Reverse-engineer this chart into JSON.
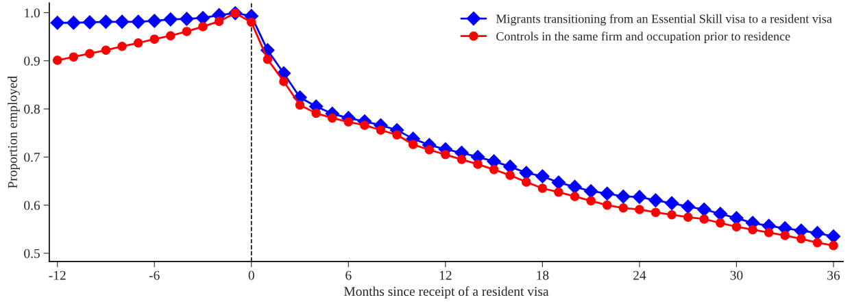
{
  "chart_data": {
    "type": "line",
    "xlabel": "Months since receipt of a resident visa",
    "ylabel": "Proportion employed",
    "x": [
      -12,
      -11,
      -10,
      -9,
      -8,
      -7,
      -6,
      -5,
      -4,
      -3,
      -2,
      -1,
      0,
      1,
      2,
      3,
      4,
      5,
      6,
      7,
      8,
      9,
      10,
      11,
      12,
      13,
      14,
      15,
      16,
      17,
      18,
      19,
      20,
      21,
      22,
      23,
      24,
      25,
      26,
      27,
      28,
      29,
      30,
      31,
      32,
      33,
      34,
      35,
      36
    ],
    "series": [
      {
        "name": "Migrants transitioning from an Essential Skill visa to a resident visa",
        "color": "#0000ff",
        "marker": "diamond",
        "values": [
          0.979,
          0.979,
          0.98,
          0.981,
          0.981,
          0.981,
          0.983,
          0.986,
          0.987,
          0.989,
          0.995,
          0.999,
          0.993,
          0.922,
          0.874,
          0.824,
          0.805,
          0.79,
          0.781,
          0.774,
          0.766,
          0.756,
          0.738,
          0.725,
          0.716,
          0.709,
          0.7,
          0.691,
          0.68,
          0.667,
          0.66,
          0.647,
          0.638,
          0.629,
          0.624,
          0.618,
          0.617,
          0.61,
          0.604,
          0.597,
          0.591,
          0.582,
          0.573,
          0.563,
          0.557,
          0.552,
          0.547,
          0.542,
          0.535
        ]
      },
      {
        "name": "Controls in the same firm and occupation prior to residence",
        "color": "#ff0000",
        "marker": "circle",
        "values": [
          0.901,
          0.908,
          0.915,
          0.922,
          0.93,
          0.937,
          0.945,
          0.952,
          0.961,
          0.971,
          0.982,
          0.999,
          0.98,
          0.903,
          0.857,
          0.808,
          0.791,
          0.781,
          0.773,
          0.766,
          0.756,
          0.746,
          0.726,
          0.715,
          0.705,
          0.695,
          0.685,
          0.674,
          0.662,
          0.648,
          0.635,
          0.627,
          0.618,
          0.609,
          0.6,
          0.594,
          0.591,
          0.585,
          0.58,
          0.575,
          0.571,
          0.563,
          0.555,
          0.549,
          0.543,
          0.537,
          0.53,
          0.522,
          0.516
        ]
      }
    ],
    "xlim": [
      -12.5,
      36.6
    ],
    "xticks": [
      -12,
      -6,
      0,
      6,
      12,
      18,
      24,
      30,
      36
    ],
    "ylim": [
      0.483,
      1.02
    ],
    "yticks": [
      {
        "value": 0.5,
        "label": "0.5"
      },
      {
        "value": 0.6,
        "label": "0.6"
      },
      {
        "value": 0.7,
        "label": "0.7"
      },
      {
        "value": 0.8,
        "label": "0.8"
      },
      {
        "value": 0.9,
        "label": "0.9"
      },
      {
        "value": 1.0,
        "label": "1.0"
      }
    ],
    "ref_lines": [
      {
        "axis": "x",
        "value": 0,
        "color": "#000000",
        "line_style": "dashed"
      }
    ],
    "grid": false,
    "legend": "top right",
    "line_style": "solid"
  }
}
